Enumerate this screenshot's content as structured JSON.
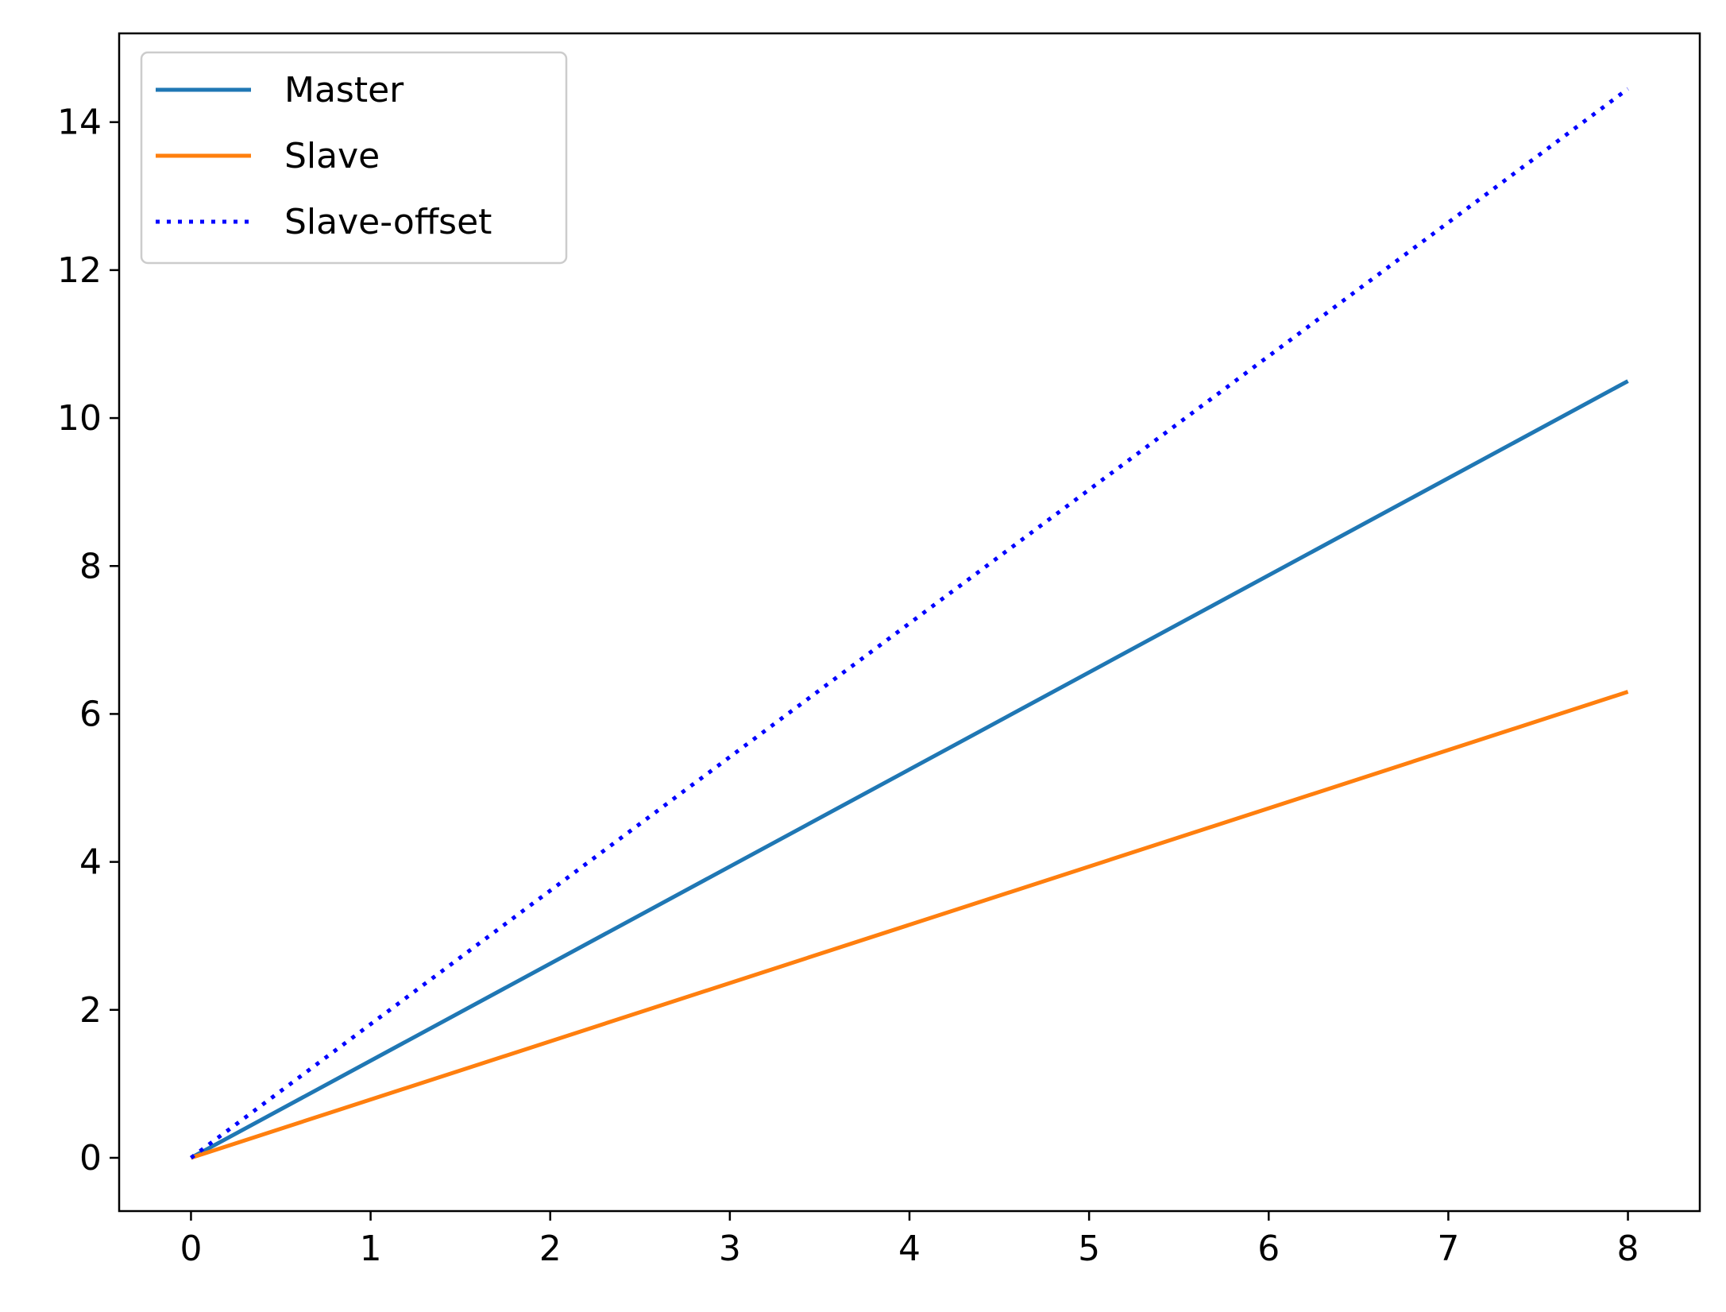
{
  "chart_data": {
    "type": "line",
    "title": "",
    "xlabel": "",
    "ylabel": "",
    "xlim": [
      -0.4,
      8.4
    ],
    "ylim": [
      -0.72,
      15.2
    ],
    "grid": false,
    "legend_position": "top-left",
    "x_ticks": [
      0,
      1,
      2,
      3,
      4,
      5,
      6,
      7,
      8
    ],
    "y_ticks": [
      0,
      2,
      4,
      6,
      8,
      10,
      12,
      14
    ],
    "series": [
      {
        "name": "Master",
        "color": "#1f77b4",
        "style": "solid",
        "x": [
          0,
          8
        ],
        "y": [
          0,
          10.5
        ]
      },
      {
        "name": "Slave",
        "color": "#ff7f0e",
        "style": "solid",
        "x": [
          0,
          8
        ],
        "y": [
          0,
          6.3
        ]
      },
      {
        "name": "Slave-offset",
        "color": "#0000ff",
        "style": "dotted",
        "x": [
          0,
          8
        ],
        "y": [
          0,
          14.45
        ]
      }
    ]
  }
}
